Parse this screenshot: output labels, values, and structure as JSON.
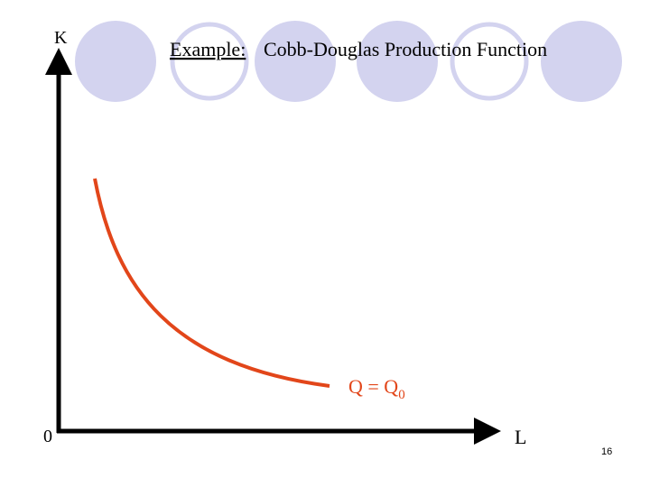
{
  "title": {
    "label": "Example:",
    "text": "Cobb-Douglas Production Function"
  },
  "axes": {
    "y_label": "K",
    "x_label": "L",
    "origin": "0"
  },
  "curve": {
    "label": "Q = Q",
    "subscript": "0"
  },
  "slide_number": "16"
}
